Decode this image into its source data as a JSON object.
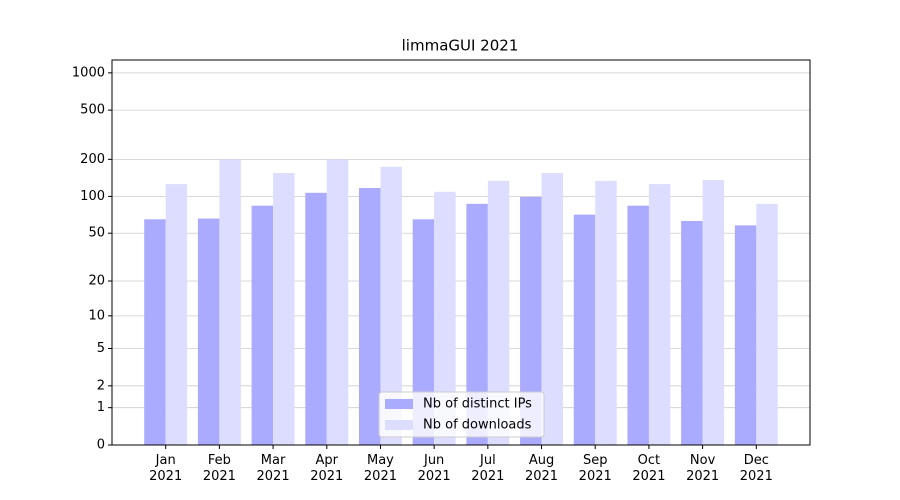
{
  "chart_data": {
    "type": "bar",
    "title": "limmaGUI 2021",
    "scale": "log1p",
    "categories": [
      "Jan\n2021",
      "Feb\n2021",
      "Mar\n2021",
      "Apr\n2021",
      "May\n2021",
      "Jun\n2021",
      "Jul\n2021",
      "Aug\n2021",
      "Sep\n2021",
      "Oct\n2021",
      "Nov\n2021",
      "Dec\n2021"
    ],
    "series": [
      {
        "name": "Nb of distinct IPs",
        "color": "#aaaaff",
        "values": [
          65,
          66,
          84,
          107,
          117,
          65,
          87,
          99,
          71,
          84,
          63,
          58
        ]
      },
      {
        "name": "Nb of downloads",
        "color": "#ddddff",
        "values": [
          126,
          200,
          155,
          200,
          174,
          109,
          134,
          155,
          134,
          126,
          136,
          87
        ]
      }
    ],
    "ylim": [
      0,
      1270
    ],
    "yticks": [
      0,
      1,
      2,
      5,
      10,
      20,
      50,
      100,
      200,
      500,
      1000
    ],
    "grid": true,
    "legend": "lower center"
  }
}
